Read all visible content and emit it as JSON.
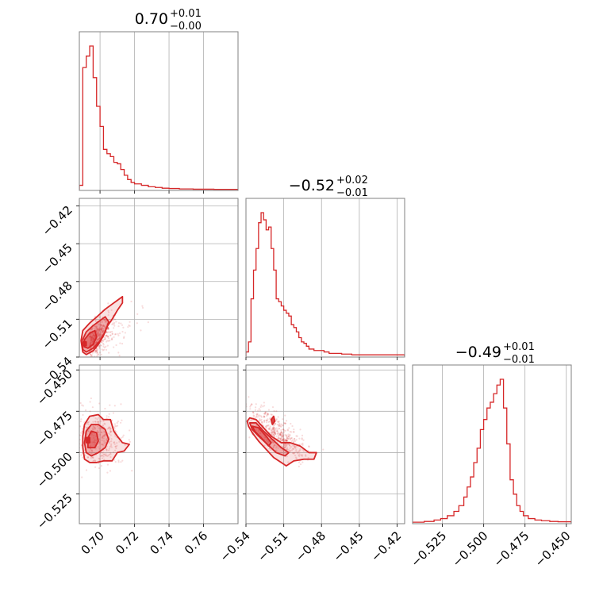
{
  "chart_data": {
    "type": "corner",
    "color": "#d62728",
    "parameters": [
      {
        "title_value": "0.70",
        "title_plus": "+0.01",
        "title_minus": "−0.00",
        "range": [
          0.688,
          0.78
        ],
        "ticks": [
          0.7,
          0.72,
          0.74,
          0.76
        ],
        "tick_labels": [
          "0.70",
          "0.72",
          "0.74",
          "0.76"
        ],
        "hist": {
          "bins": [
            0.688,
            0.69,
            0.692,
            0.694,
            0.696,
            0.698,
            0.7,
            0.702,
            0.704,
            0.706,
            0.708,
            0.71,
            0.712,
            0.714,
            0.716,
            0.718,
            0.72,
            0.724,
            0.728,
            0.732,
            0.736,
            0.74,
            0.746,
            0.754,
            0.766,
            0.78
          ],
          "counts": [
            0.03,
            0.85,
            0.93,
            1.0,
            0.78,
            0.58,
            0.44,
            0.28,
            0.25,
            0.23,
            0.19,
            0.18,
            0.14,
            0.1,
            0.07,
            0.05,
            0.04,
            0.03,
            0.02,
            0.015,
            0.01,
            0.008,
            0.005,
            0.003,
            0.002
          ]
        }
      },
      {
        "title_value": "−0.52",
        "title_plus": "+0.02",
        "title_minus": "−0.01",
        "range": [
          -0.54,
          -0.414
        ],
        "ticks": [
          -0.54,
          -0.51,
          -0.48,
          -0.45,
          -0.42
        ],
        "tick_labels": [
          "−0.54",
          "−0.51",
          "−0.48",
          "−0.45",
          "−0.42"
        ],
        "hist": {
          "bins": [
            -0.54,
            -0.538,
            -0.536,
            -0.534,
            -0.532,
            -0.53,
            -0.528,
            -0.526,
            -0.524,
            -0.522,
            -0.52,
            -0.518,
            -0.516,
            -0.514,
            -0.512,
            -0.51,
            -0.508,
            -0.506,
            -0.504,
            -0.502,
            -0.5,
            -0.498,
            -0.496,
            -0.494,
            -0.492,
            -0.49,
            -0.486,
            -0.482,
            -0.478,
            -0.474,
            -0.47,
            -0.464,
            -0.456,
            -0.446,
            -0.434,
            -0.414
          ],
          "counts": [
            0.03,
            0.1,
            0.4,
            0.6,
            0.75,
            0.93,
            1.0,
            0.95,
            0.88,
            0.9,
            0.75,
            0.6,
            0.4,
            0.38,
            0.35,
            0.32,
            0.3,
            0.28,
            0.22,
            0.2,
            0.17,
            0.13,
            0.1,
            0.09,
            0.07,
            0.05,
            0.04,
            0.04,
            0.03,
            0.02,
            0.02,
            0.015,
            0.01,
            0.01,
            0.01
          ]
        }
      },
      {
        "title_value": "−0.49",
        "title_plus": "+0.01",
        "title_minus": "−0.01",
        "range": [
          -0.543,
          -0.447
        ],
        "ticks": [
          -0.525,
          -0.5,
          -0.475,
          -0.45
        ],
        "tick_labels": [
          "−0.525",
          "−0.500",
          "−0.475",
          "−0.450"
        ],
        "hist": {
          "bins": [
            -0.543,
            -0.536,
            -0.53,
            -0.526,
            -0.522,
            -0.518,
            -0.515,
            -0.512,
            -0.51,
            -0.508,
            -0.506,
            -0.504,
            -0.502,
            -0.5,
            -0.498,
            -0.496,
            -0.494,
            -0.492,
            -0.49,
            -0.488,
            -0.486,
            -0.484,
            -0.482,
            -0.48,
            -0.478,
            -0.476,
            -0.473,
            -0.469,
            -0.465,
            -0.46,
            -0.455,
            -0.447
          ],
          "counts": [
            0.005,
            0.01,
            0.02,
            0.03,
            0.05,
            0.08,
            0.12,
            0.18,
            0.25,
            0.32,
            0.42,
            0.52,
            0.65,
            0.72,
            0.8,
            0.84,
            0.9,
            0.96,
            1.0,
            0.8,
            0.55,
            0.3,
            0.2,
            0.12,
            0.08,
            0.05,
            0.03,
            0.02,
            0.015,
            0.01,
            0.008
          ]
        }
      }
    ],
    "pairs": [
      {
        "row": 1,
        "col": 0,
        "samples": {
          "cx": 0.694,
          "cy": -0.53,
          "sx": 0.006,
          "sy": 0.01,
          "rho": 0.75,
          "n": 520,
          "seed": 11
        },
        "contours": [
          [
            [
              0.69,
              -0.536
            ],
            [
              0.689,
              -0.527
            ],
            [
              0.69,
              -0.519
            ],
            [
              0.694,
              -0.513
            ],
            [
              0.699,
              -0.507
            ],
            [
              0.703,
              -0.502
            ],
            [
              0.707,
              -0.498
            ],
            [
              0.711,
              -0.494
            ],
            [
              0.713,
              -0.492
            ],
            [
              0.713,
              -0.497
            ],
            [
              0.71,
              -0.503
            ],
            [
              0.707,
              -0.51
            ],
            [
              0.704,
              -0.516
            ],
            [
              0.702,
              -0.523
            ],
            [
              0.699,
              -0.53
            ],
            [
              0.696,
              -0.535
            ],
            [
              0.692,
              -0.538
            ]
          ],
          [
            [
              0.69,
              -0.534
            ],
            [
              0.69,
              -0.526
            ],
            [
              0.692,
              -0.52
            ],
            [
              0.696,
              -0.515
            ],
            [
              0.7,
              -0.511
            ],
            [
              0.703,
              -0.508
            ],
            [
              0.705,
              -0.512
            ],
            [
              0.703,
              -0.52
            ],
            [
              0.7,
              -0.527
            ],
            [
              0.696,
              -0.533
            ],
            [
              0.692,
              -0.536
            ]
          ],
          [
            [
              0.691,
              -0.532
            ],
            [
              0.691,
              -0.526
            ],
            [
              0.694,
              -0.521
            ],
            [
              0.697,
              -0.519
            ],
            [
              0.698,
              -0.524
            ],
            [
              0.696,
              -0.53
            ],
            [
              0.693,
              -0.533
            ]
          ],
          [
            [
              0.69,
              -0.531
            ],
            [
              0.69,
              -0.528
            ],
            [
              0.692,
              -0.528
            ],
            [
              0.692,
              -0.531
            ]
          ]
        ]
      },
      {
        "row": 2,
        "col": 0,
        "samples": {
          "cx": 0.698,
          "cy": -0.492,
          "sx": 0.008,
          "sy": 0.009,
          "rho": 0.0,
          "n": 380,
          "seed": 23
        },
        "contours": [
          [
            [
              0.691,
              -0.504
            ],
            [
              0.69,
              -0.497
            ],
            [
              0.69,
              -0.49
            ],
            [
              0.691,
              -0.483
            ],
            [
              0.694,
              -0.478
            ],
            [
              0.699,
              -0.477
            ],
            [
              0.702,
              -0.48
            ],
            [
              0.706,
              -0.48
            ],
            [
              0.708,
              -0.487
            ],
            [
              0.71,
              -0.49
            ],
            [
              0.713,
              -0.494
            ],
            [
              0.717,
              -0.495
            ],
            [
              0.714,
              -0.499
            ],
            [
              0.71,
              -0.5
            ],
            [
              0.707,
              -0.505
            ],
            [
              0.702,
              -0.505
            ],
            [
              0.698,
              -0.506
            ],
            [
              0.694,
              -0.506
            ]
          ],
          [
            [
              0.692,
              -0.5
            ],
            [
              0.691,
              -0.494
            ],
            [
              0.692,
              -0.487
            ],
            [
              0.695,
              -0.483
            ],
            [
              0.699,
              -0.483
            ],
            [
              0.703,
              -0.486
            ],
            [
              0.705,
              -0.492
            ],
            [
              0.703,
              -0.497
            ],
            [
              0.699,
              -0.5
            ],
            [
              0.695,
              -0.502
            ]
          ],
          [
            [
              0.693,
              -0.497
            ],
            [
              0.693,
              -0.491
            ],
            [
              0.695,
              -0.487
            ],
            [
              0.698,
              -0.488
            ],
            [
              0.699,
              -0.493
            ],
            [
              0.697,
              -0.497
            ]
          ],
          [
            [
              0.692,
              -0.494
            ],
            [
              0.692,
              -0.491
            ],
            [
              0.694,
              -0.491
            ],
            [
              0.694,
              -0.494
            ]
          ]
        ]
      },
      {
        "row": 2,
        "col": 1,
        "samples": {
          "cx": -0.515,
          "cy": -0.489,
          "sx": 0.012,
          "sy": 0.008,
          "rho": -0.75,
          "n": 520,
          "seed": 37
        },
        "contours": [
          [
            [
              -0.539,
              -0.481
            ],
            [
              -0.537,
              -0.479
            ],
            [
              -0.532,
              -0.48
            ],
            [
              -0.526,
              -0.485
            ],
            [
              -0.52,
              -0.49
            ],
            [
              -0.512,
              -0.494
            ],
            [
              -0.505,
              -0.494
            ],
            [
              -0.497,
              -0.496
            ],
            [
              -0.49,
              -0.5
            ],
            [
              -0.484,
              -0.5
            ],
            [
              -0.486,
              -0.504
            ],
            [
              -0.494,
              -0.504
            ],
            [
              -0.502,
              -0.505
            ],
            [
              -0.508,
              -0.508
            ],
            [
              -0.512,
              -0.506
            ],
            [
              -0.518,
              -0.503
            ],
            [
              -0.524,
              -0.498
            ],
            [
              -0.53,
              -0.493
            ],
            [
              -0.535,
              -0.488
            ],
            [
              -0.538,
              -0.484
            ]
          ],
          [
            [
              -0.537,
              -0.482
            ],
            [
              -0.532,
              -0.482
            ],
            [
              -0.526,
              -0.487
            ],
            [
              -0.519,
              -0.492
            ],
            [
              -0.512,
              -0.497
            ],
            [
              -0.506,
              -0.5
            ],
            [
              -0.509,
              -0.502
            ],
            [
              -0.516,
              -0.5
            ],
            [
              -0.523,
              -0.495
            ],
            [
              -0.53,
              -0.49
            ],
            [
              -0.535,
              -0.486
            ]
          ],
          [
            [
              -0.535,
              -0.484
            ],
            [
              -0.53,
              -0.485
            ],
            [
              -0.524,
              -0.49
            ],
            [
              -0.52,
              -0.494
            ],
            [
              -0.522,
              -0.496
            ],
            [
              -0.528,
              -0.491
            ],
            [
              -0.533,
              -0.487
            ]
          ],
          [
            [
              -0.52,
              -0.48
            ],
            [
              -0.518,
              -0.478
            ],
            [
              -0.517,
              -0.481
            ],
            [
              -0.519,
              -0.483
            ]
          ]
        ]
      }
    ]
  }
}
